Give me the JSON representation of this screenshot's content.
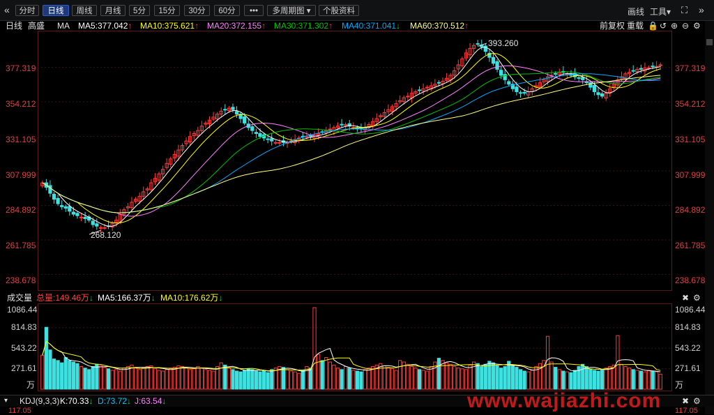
{
  "toolbar": {
    "prev_icon": "double-left-chevron",
    "tabs": [
      {
        "label": "分时",
        "active": false
      },
      {
        "label": "日线",
        "active": true
      },
      {
        "label": "周线",
        "active": false
      },
      {
        "label": "月线",
        "active": false
      },
      {
        "label": "5分",
        "active": false
      },
      {
        "label": "15分",
        "active": false
      },
      {
        "label": "30分",
        "active": false
      },
      {
        "label": "60分",
        "active": false
      }
    ],
    "more_label": "•••",
    "multi_cycle_label": "多周期图",
    "multi_cycle_arrow": "▾",
    "stock_info_label": "个股资料",
    "draw_label": "画线",
    "tools_label": "工具",
    "tools_arrow": "▾",
    "expand_icon": "expand-icon",
    "next_icon": "double-right-chevron"
  },
  "ma_row": {
    "period": "日线",
    "stock": "高盛",
    "ma_label": "MA",
    "ma5": "MA5:377.042",
    "ma10": "MA10:375.621",
    "ma20": "MA20:372.155",
    "ma30": "MA30:371.302",
    "ma40": "MA40:371.041",
    "ma60": "MA60:370.512",
    "ma5_dir": "up",
    "ma10_dir": "up",
    "ma20_dir": "up",
    "ma30_dir": "up",
    "ma40_dir": "down",
    "ma60_dir": "up",
    "adjust_label": "前复权",
    "reset_label": "重载",
    "colors": {
      "ma5": "#ffffff",
      "ma10": "#ffff00",
      "ma20": "#ff80ff",
      "ma30": "#00c000",
      "ma40": "#00a8ff",
      "ma60": "#ffff80"
    }
  },
  "price_axis": {
    "ticks": [
      "377.319",
      "354.212",
      "331.105",
      "307.999",
      "284.892",
      "261.785",
      "238.678"
    ]
  },
  "annotations": {
    "high": "393.260",
    "low": "268.120"
  },
  "volume_header": {
    "title": "成交量",
    "total": "总量:149.46万",
    "ma5": "MA5:166.37万",
    "ma10": "MA10:176.62万",
    "total_dir": "down",
    "ma5_dir": "down",
    "ma10_dir": "down"
  },
  "volume_axis": {
    "ticks": [
      "1086.44",
      "814.83",
      "543.22",
      "271.61"
    ],
    "unit": "万"
  },
  "kdj": {
    "title": "KDJ(9,3,3)",
    "k": "K:70.33",
    "d": "D:73.72",
    "j": "J:63.54",
    "k_dir": "down",
    "d_dir": "down",
    "j_dir": "down",
    "axis_top": "117.05"
  },
  "watermark": "www.wajiazhi.com",
  "chart_data": {
    "type": "candlestick",
    "price_range": [
      230,
      400
    ],
    "volume_range": [
      0,
      1090
    ],
    "high_marker": 393.26,
    "low_marker": 268.12,
    "close": [
      300,
      297,
      293,
      289,
      286,
      284,
      283,
      281,
      279,
      278,
      277,
      276,
      275,
      272,
      271,
      270,
      270,
      271,
      273,
      275,
      279,
      282,
      284,
      287,
      289,
      291,
      294,
      296,
      300,
      303,
      306,
      309,
      313,
      316,
      319,
      322,
      325,
      328,
      331,
      333,
      335,
      338,
      340,
      342,
      344,
      346,
      348,
      349,
      350,
      349,
      346,
      343,
      340,
      337,
      335,
      333,
      331,
      330,
      329,
      328,
      327,
      327,
      327,
      327,
      328,
      329,
      330,
      331,
      331,
      331,
      332,
      333,
      334,
      335,
      336,
      337,
      338,
      339,
      339,
      338,
      337,
      336,
      336,
      337,
      339,
      341,
      343,
      345,
      347,
      349,
      351,
      353,
      355,
      357,
      358,
      360,
      361,
      362,
      363,
      364,
      365,
      366,
      367,
      368,
      370,
      372,
      375,
      379,
      383,
      387,
      390,
      392,
      393,
      391,
      388,
      384,
      380,
      376,
      372,
      369,
      366,
      363,
      361,
      360,
      360,
      361,
      363,
      365,
      367,
      369,
      371,
      372,
      373,
      374,
      374,
      373,
      372,
      371,
      370,
      369,
      367,
      364,
      361,
      359,
      358,
      360,
      363,
      366,
      369,
      371,
      373,
      374,
      375,
      376,
      376,
      377,
      377,
      378,
      378,
      379
    ],
    "volume": [
      450,
      820,
      520,
      400,
      380,
      350,
      420,
      380,
      360,
      340,
      300,
      280,
      260,
      300,
      330,
      310,
      290,
      270,
      250,
      260,
      240,
      280,
      300,
      320,
      290,
      260,
      280,
      300,
      310,
      270,
      250,
      240,
      260,
      280,
      290,
      310,
      300,
      280,
      260,
      270,
      300,
      280,
      260,
      250,
      240,
      300,
      350,
      320,
      280,
      260,
      240,
      230,
      250,
      270,
      260,
      240,
      230,
      250,
      220,
      260,
      280,
      300,
      290,
      260,
      240,
      230,
      210,
      250,
      300,
      280,
      1080,
      460,
      380,
      420,
      360,
      320,
      280,
      260,
      300,
      280,
      250,
      240,
      230,
      260,
      280,
      300,
      320,
      340,
      310,
      290,
      270,
      250,
      380,
      360,
      330,
      300,
      280,
      260,
      250,
      240,
      300,
      360,
      410,
      380,
      350,
      330,
      300,
      280,
      270,
      260,
      320,
      360,
      340,
      300,
      330,
      370,
      350,
      310,
      280,
      300,
      370,
      320,
      290,
      260,
      240,
      230,
      250,
      300,
      340,
      380,
      700,
      360,
      290,
      260,
      240,
      230,
      220,
      250,
      300,
      330,
      300,
      270,
      250,
      240,
      260,
      280,
      300,
      320,
      710,
      330,
      300,
      280,
      260,
      250,
      240,
      230,
      250,
      240,
      230,
      200
    ]
  }
}
